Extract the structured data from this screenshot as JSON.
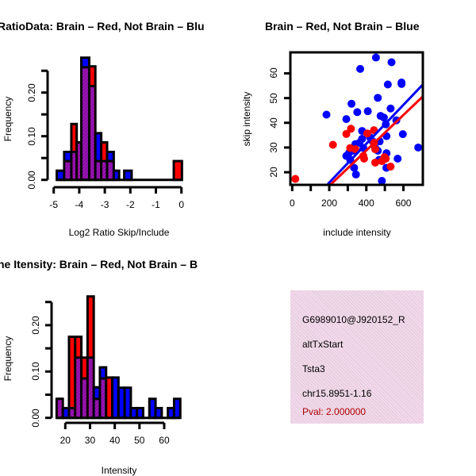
{
  "colors": {
    "red": "#ff0000",
    "blue": "#0000ff",
    "purple": "#8a0aa0",
    "pval": "#b00000"
  },
  "chart_data": [
    {
      "type": "bar",
      "subtype": "overlaid-histogram",
      "title": "RatioData: Brain – Red, Not Brain – Blu",
      "xlabel": "Log2 Ratio Skip/Include",
      "ylabel": "Frequency",
      "xlim": [
        -5,
        0
      ],
      "ylim": [
        0,
        0.25
      ],
      "xticks": [
        "-5",
        "-4",
        "-3",
        "-2",
        "-1",
        "0"
      ],
      "yticks": [
        "0.00",
        "0.10",
        "0.20"
      ],
      "series_names": [
        "Brain (red)",
        "Not Brain (blue)"
      ],
      "bins": [
        {
          "x0": -4.88,
          "x1": -4.59,
          "red": 0.0,
          "blue": 0.021
        },
        {
          "x0": -4.59,
          "x1": -4.31,
          "red": 0.043,
          "blue": 0.064
        },
        {
          "x0": -4.31,
          "x1": -4.1,
          "red": 0.128,
          "blue": 0.064
        },
        {
          "x0": -4.1,
          "x1": -3.92,
          "red": 0.086,
          "blue": 0.086
        },
        {
          "x0": -3.92,
          "x1": -3.61,
          "red": 0.258,
          "blue": 0.28
        },
        {
          "x0": -3.61,
          "x1": -3.37,
          "red": 0.26,
          "blue": 0.215
        },
        {
          "x0": -3.37,
          "x1": -3.14,
          "red": 0.043,
          "blue": 0.107
        },
        {
          "x0": -3.14,
          "x1": -2.91,
          "red": 0.086,
          "blue": 0.043
        },
        {
          "x0": -2.91,
          "x1": -2.65,
          "red": 0.043,
          "blue": 0.064
        },
        {
          "x0": -2.65,
          "x1": -2.44,
          "red": 0.0,
          "blue": 0.021
        },
        {
          "x0": -2.24,
          "x1": -1.95,
          "red": 0.0,
          "blue": 0.021
        },
        {
          "x0": -0.3,
          "x1": 0.02,
          "red": 0.043,
          "blue": 0.0
        }
      ]
    },
    {
      "type": "scatter",
      "title": "Brain – Red, Not Brain – Blue",
      "xlabel": "include intensity",
      "ylabel": "skip intensity",
      "xlim": [
        -10,
        705
      ],
      "ylim": [
        14.9,
        68.5
      ],
      "xticks": [
        "0",
        "200",
        "400",
        "600"
      ],
      "yticks": [
        "20",
        "30",
        "40",
        "50",
        "60"
      ],
      "series": [
        {
          "name": "Brain",
          "color": "red",
          "points": [
            [
              17,
              17.3
            ],
            [
              220,
              31.1
            ],
            [
              292,
              35.5
            ],
            [
              317,
              37.6
            ],
            [
              405,
              35.7
            ],
            [
              441,
              37.0
            ],
            [
              313,
              29.8
            ],
            [
              341,
              29.3
            ],
            [
              388,
              25.5
            ],
            [
              448,
              23.9
            ],
            [
              448,
              29.3
            ],
            [
              505,
              25.5
            ],
            [
              531,
              22.3
            ],
            [
              441,
              31.9
            ],
            [
              484,
              24.5
            ],
            [
              498,
              26.1
            ],
            [
              384,
              26.6
            ]
          ],
          "fit_line": [
            [
              206,
              14.9
            ],
            [
              704,
              50.6
            ]
          ]
        },
        {
          "name": "Not Brain",
          "color": "blue",
          "points": [
            [
              452,
              66.4
            ],
            [
              536,
              64.5
            ],
            [
              367,
              61.8
            ],
            [
              516,
              55.5
            ],
            [
              590,
              56.3
            ],
            [
              590,
              55.7
            ],
            [
              185,
              43.3
            ],
            [
              320,
              47.7
            ],
            [
              351,
              44.3
            ],
            [
              408,
              44.7
            ],
            [
              462,
              50.1
            ],
            [
              531,
              45.8
            ],
            [
              292,
              41.5
            ],
            [
              477,
              42.8
            ],
            [
              495,
              42.1
            ],
            [
              505,
              39.4
            ],
            [
              562,
              41.0
            ],
            [
              597,
              35.4
            ],
            [
              377,
              36.7
            ],
            [
              420,
              34.1
            ],
            [
              472,
              32.5
            ],
            [
              509,
              34.6
            ],
            [
              377,
              33.5
            ],
            [
              341,
              31.4
            ],
            [
              327,
              28.7
            ],
            [
              306,
              27.7
            ],
            [
              292,
              26.6
            ],
            [
              313,
              25.0
            ],
            [
              334,
              21.8
            ],
            [
              344,
              19.1
            ],
            [
              484,
              16.5
            ],
            [
              434,
              32.5
            ],
            [
              448,
              29.8
            ],
            [
              462,
              28.7
            ],
            [
              509,
              27.7
            ],
            [
              469,
              25.0
            ],
            [
              508,
              21.8
            ],
            [
              569,
              25.5
            ],
            [
              680,
              30.0
            ],
            [
              363,
              31.9
            ],
            [
              384,
              29.8
            ]
          ],
          "fit_line": [
            [
              192,
              15.2
            ],
            [
              704,
              55.4
            ]
          ]
        }
      ]
    },
    {
      "type": "bar",
      "subtype": "overlaid-histogram",
      "title": "ne Itensity: Brain – Red, Not Brain – B",
      "xlabel": "Intensity",
      "ylabel": "Frequency",
      "xlim": [
        20,
        60
      ],
      "ylim": [
        0,
        0.25
      ],
      "xticks": [
        "20",
        "30",
        "40",
        "50",
        "60"
      ],
      "yticks": [
        "0.00",
        "0.10",
        "0.20"
      ],
      "bin_start": 16.5,
      "bin_width": 2.5,
      "red": [
        0.041,
        0.0,
        0.175,
        0.175,
        0.13,
        0.262,
        0.041,
        0.085,
        0.087,
        0.0,
        0.0,
        0.0,
        0.0,
        0.0,
        0.0,
        0.0,
        0.0,
        0.0,
        0.0,
        0.0
      ],
      "blue": [
        0.041,
        0.021,
        0.021,
        0.13,
        0.085,
        0.13,
        0.066,
        0.109,
        0.0,
        0.087,
        0.065,
        0.065,
        0.021,
        0.021,
        0.0,
        0.041,
        0.021,
        0.0,
        0.021,
        0.041
      ]
    }
  ],
  "info": {
    "id": "G6989010@J920152_R",
    "event_type": "altTxStart",
    "gene": "Tsta3",
    "location": "chr15.8951-1.16",
    "pval": "Pval: 2.000000"
  }
}
